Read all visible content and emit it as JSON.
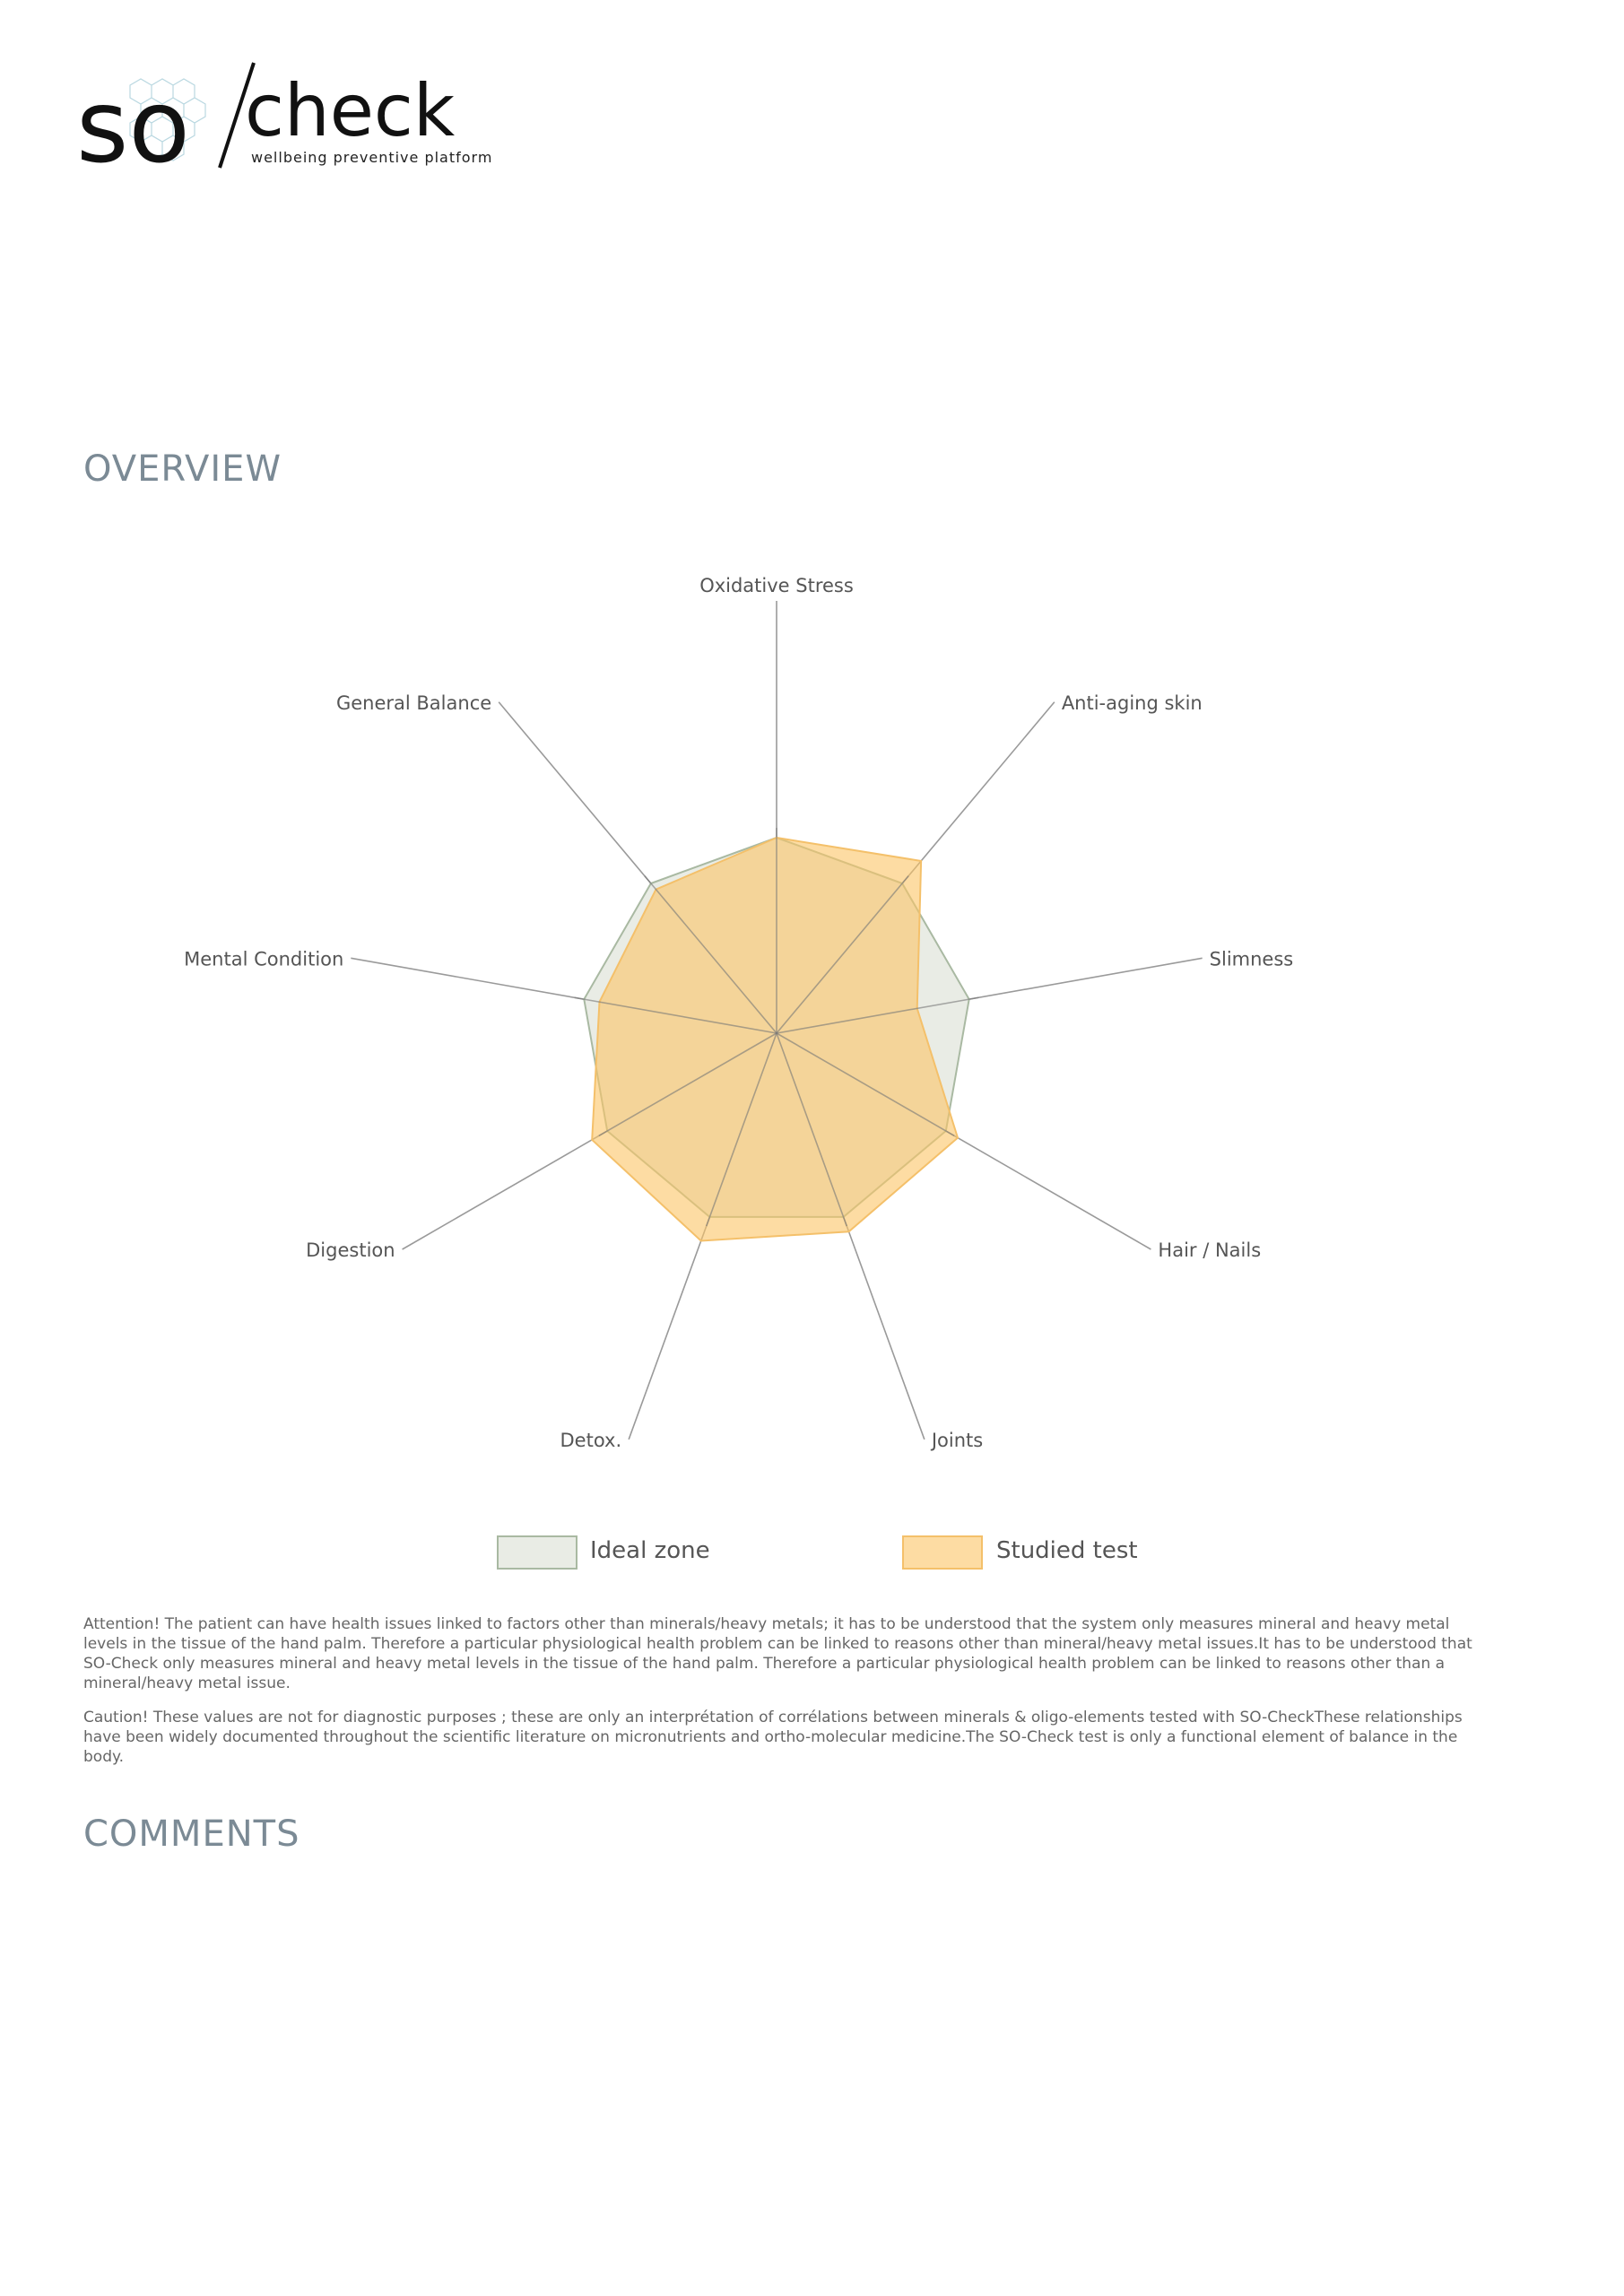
{
  "logo": {
    "text_so": "so",
    "text_check": "check",
    "tagline": "wellbeing preventive platform"
  },
  "sections": {
    "overview": "OVERVIEW",
    "comments": "COMMENTS"
  },
  "legend": {
    "ideal": "Ideal zone",
    "studied": "Studied test"
  },
  "colors": {
    "ideal_fill": "#e9ece5",
    "ideal_stroke": "#a9b9a2",
    "studied_fill": "#fcc565",
    "studied_stroke": "#f4c06a",
    "axis": "#9a9a9a",
    "heading": "#7b8a95"
  },
  "chart_data": {
    "type": "radar",
    "categories": [
      "Oxidative Stress",
      "Anti-aging skin",
      "Slimness",
      "Hair / Nails",
      "Joints",
      "Detox.",
      "Digestion",
      "Mental Condition",
      "General Balance"
    ],
    "series": [
      {
        "name": "Ideal zone",
        "values": [
          100,
          100,
          100,
          100,
          100,
          100,
          100,
          100,
          100
        ]
      },
      {
        "name": "Studied test",
        "values": [
          100,
          115,
          73,
          107,
          108,
          113,
          109,
          92,
          96
        ]
      }
    ],
    "grid": false,
    "legend_position": "bottom"
  },
  "disclaimers": {
    "attention": "Attention! The patient can have health issues linked to factors other than minerals/heavy metals; it has to be understood that the system only measures mineral and heavy metal levels in the tissue of the hand palm. Therefore a particular physiological health problem can be linked to reasons other than mineral/heavy metal issues.It has to be understood that SO-Check only measures mineral and heavy metal  levels in the tissue of the hand palm. Therefore a particular physiological health problem can be linked to reasons other than a mineral/heavy metal issue.",
    "caution": "Caution! These values are not for diagnostic purposes ; these are only an interprétation of corrélations between minerals & oligo-elements tested with SO-CheckThese relationships have been widely documented throughout the scientific literature on micronutrients and ortho-molecular medicine.The SO-Check test is only a functional element of balance in the body."
  }
}
